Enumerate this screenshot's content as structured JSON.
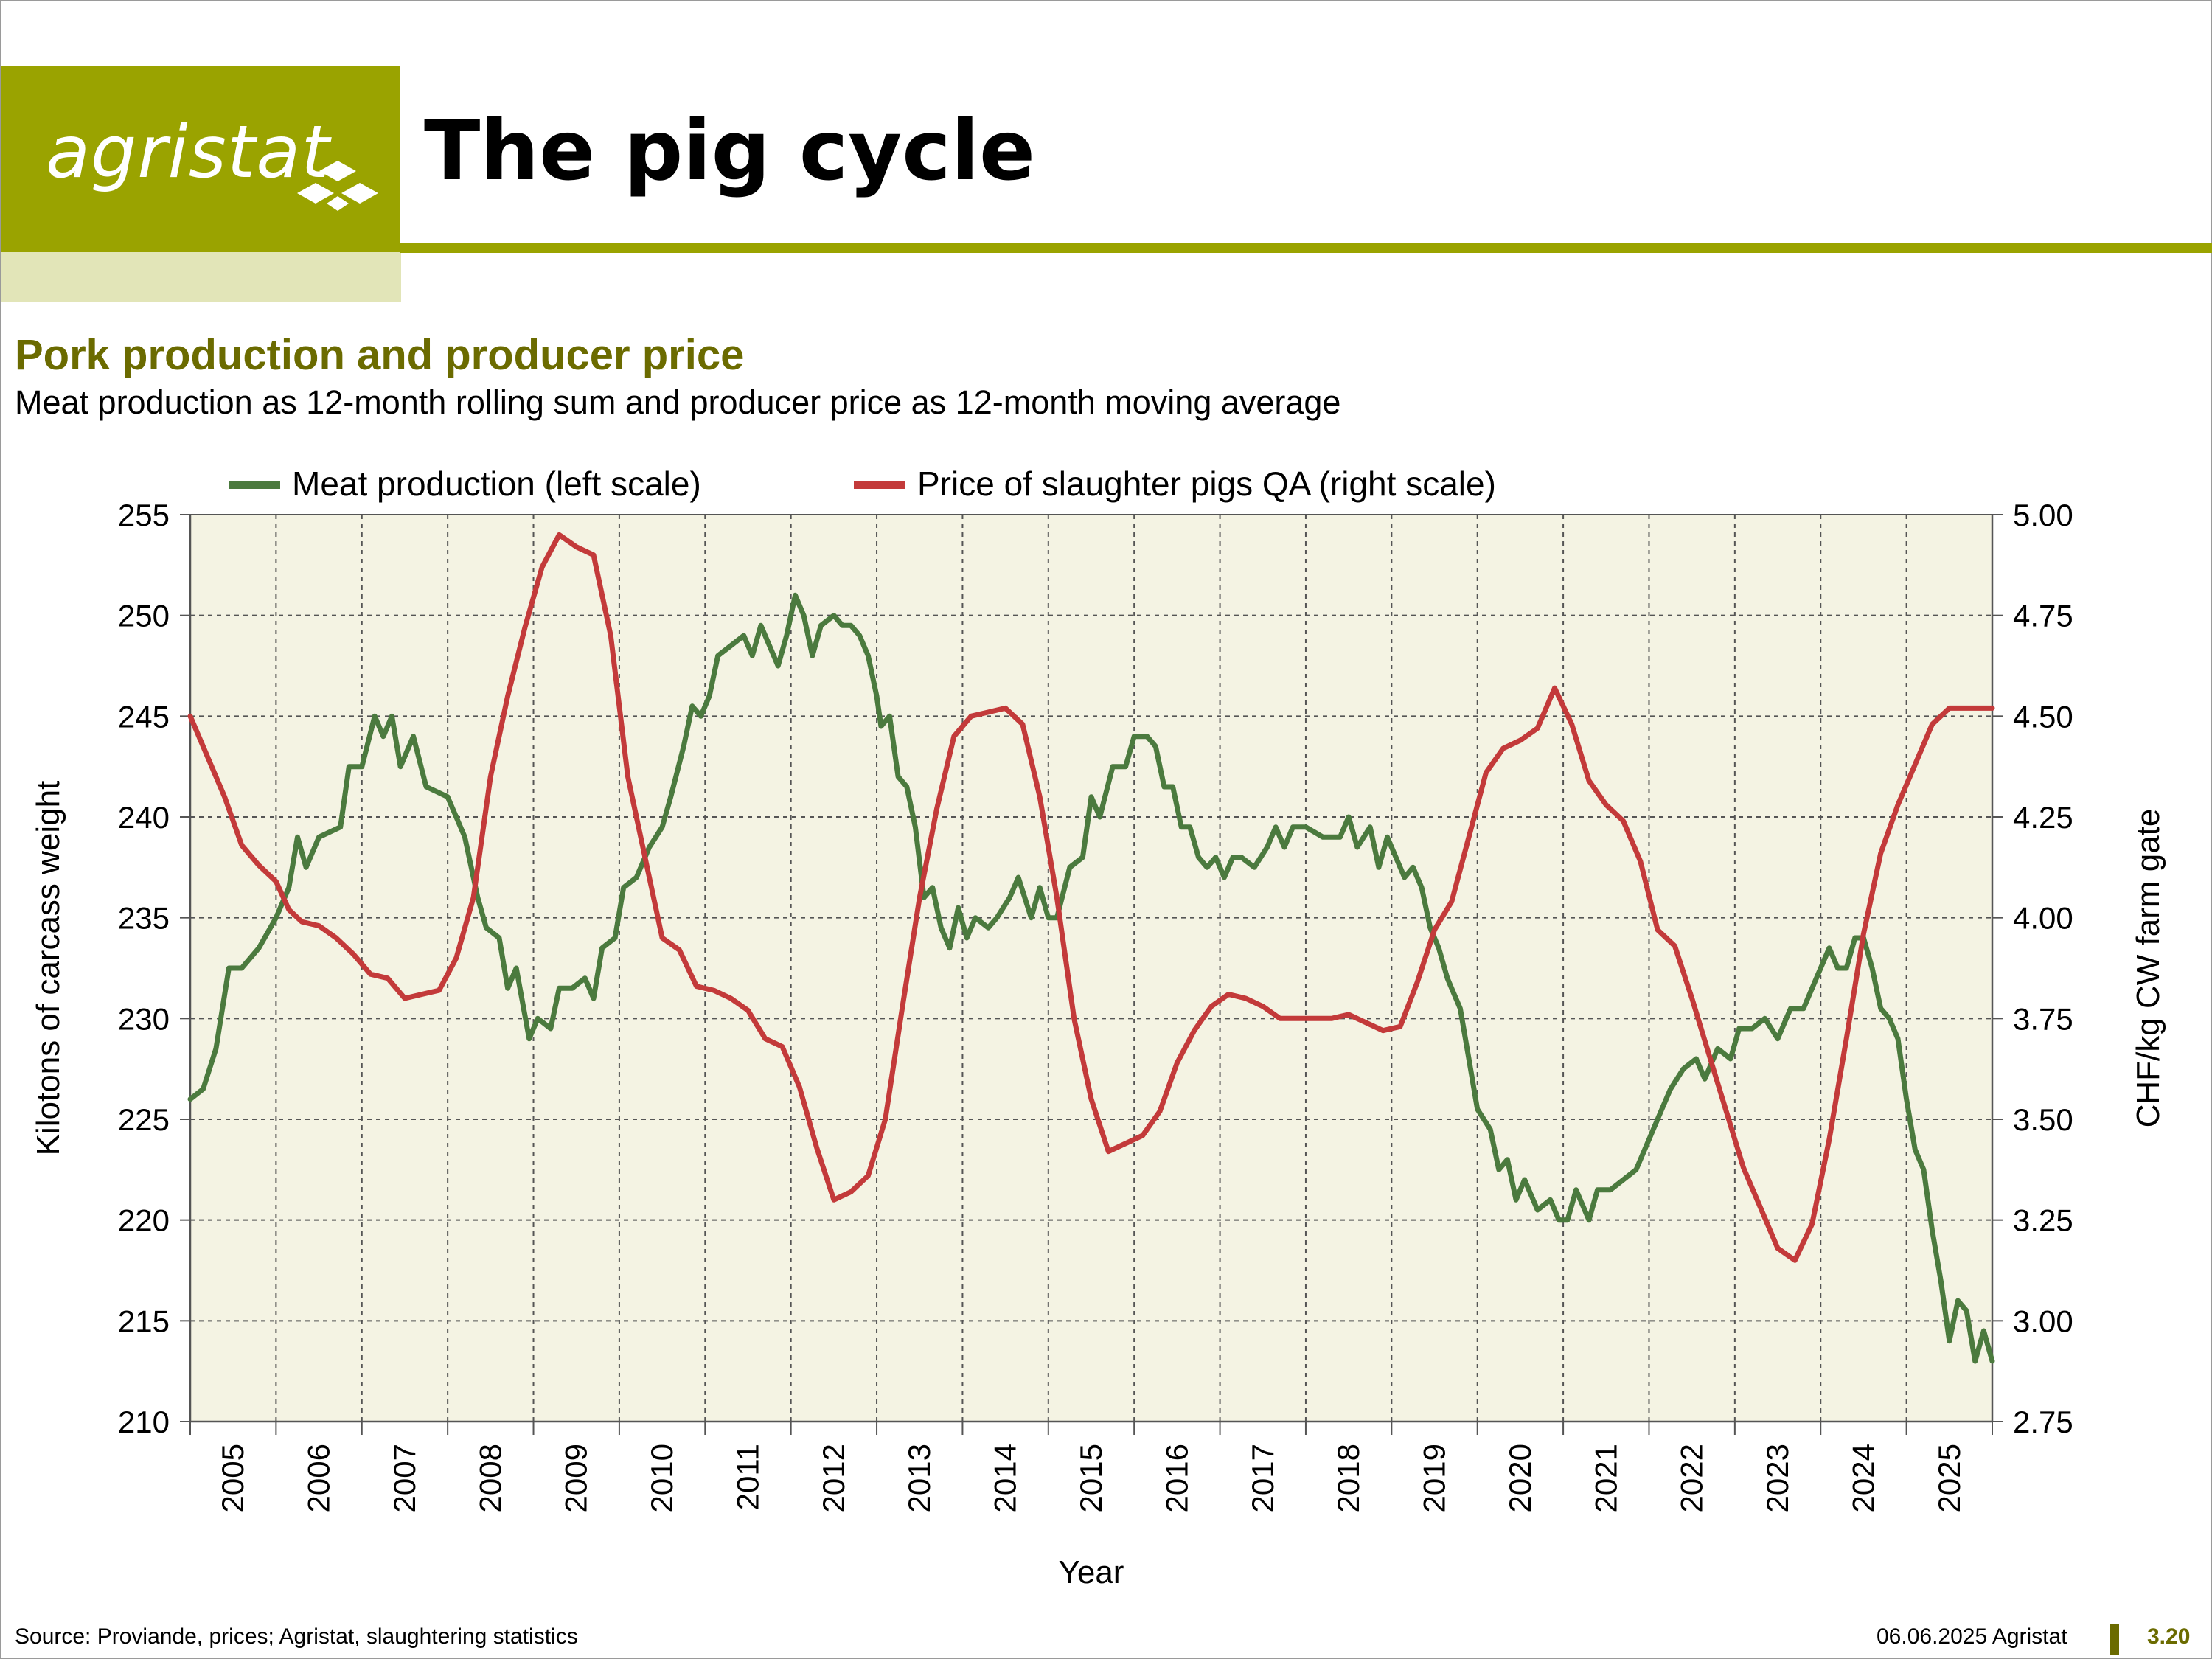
{
  "header": {
    "logo_text": "agristat",
    "page_title": "The pig cycle",
    "brand_color": "#9aa300"
  },
  "footer": {
    "source": "Source: Proviande, prices; Agristat, slaughtering statistics",
    "date": "06.06.2025 Agristat",
    "page_number": "3.20"
  },
  "chart_data": {
    "type": "line",
    "title": "Pork production and producer price",
    "subtitle": "Meat production as 12-month rolling sum and producer price as 12-month moving average",
    "xlabel": "Year",
    "ylabel_left": "Kilotons of carcass weight",
    "ylabel_right": "CHF/kg CW farm gate",
    "ylim_left": [
      210,
      255
    ],
    "ylim_right": [
      2.75,
      5.0
    ],
    "left_ticks": [
      "210",
      "215",
      "220",
      "225",
      "230",
      "235",
      "240",
      "245",
      "250",
      "255"
    ],
    "right_ticks": [
      "2.75",
      "3.00",
      "3.25",
      "3.50",
      "3.75",
      "4.00",
      "4.25",
      "4.50",
      "4.75",
      "5.00"
    ],
    "x_ticks": [
      "2005",
      "2006",
      "2007",
      "2008",
      "2009",
      "2010",
      "2011",
      "2012",
      "2013",
      "2014",
      "2015",
      "2016",
      "2017",
      "2018",
      "2019",
      "2020",
      "2021",
      "2022",
      "2023",
      "2024",
      "2025"
    ],
    "xlim": [
      2005.0,
      2026.0
    ],
    "grid": true,
    "legend_position": "top",
    "series": [
      {
        "name": "Meat production (left scale)",
        "axis": "left",
        "color": "#4b7a3e",
        "points": [
          [
            2005.0,
            226.0
          ],
          [
            2005.15,
            226.5
          ],
          [
            2005.3,
            228.5
          ],
          [
            2005.45,
            232.5
          ],
          [
            2005.6,
            232.5
          ],
          [
            2005.8,
            233.5
          ],
          [
            2006.0,
            235.0
          ],
          [
            2006.15,
            236.5
          ],
          [
            2006.25,
            239.0
          ],
          [
            2006.35,
            237.5
          ],
          [
            2006.5,
            239.0
          ],
          [
            2006.75,
            239.5
          ],
          [
            2006.85,
            242.5
          ],
          [
            2007.0,
            242.5
          ],
          [
            2007.15,
            245.0
          ],
          [
            2007.25,
            244.0
          ],
          [
            2007.35,
            245.0
          ],
          [
            2007.45,
            242.5
          ],
          [
            2007.6,
            244.0
          ],
          [
            2007.75,
            241.5
          ],
          [
            2008.0,
            241.0
          ],
          [
            2008.2,
            239.0
          ],
          [
            2008.35,
            236.0
          ],
          [
            2008.45,
            234.5
          ],
          [
            2008.6,
            234.0
          ],
          [
            2008.7,
            231.5
          ],
          [
            2008.8,
            232.5
          ],
          [
            2008.95,
            229.0
          ],
          [
            2009.05,
            230.0
          ],
          [
            2009.2,
            229.5
          ],
          [
            2009.3,
            231.5
          ],
          [
            2009.45,
            231.5
          ],
          [
            2009.6,
            232.0
          ],
          [
            2009.7,
            231.0
          ],
          [
            2009.8,
            233.5
          ],
          [
            2009.95,
            234.0
          ],
          [
            2010.05,
            236.5
          ],
          [
            2010.2,
            237.0
          ],
          [
            2010.35,
            238.5
          ],
          [
            2010.5,
            239.5
          ],
          [
            2010.6,
            241.0
          ],
          [
            2010.75,
            243.5
          ],
          [
            2010.85,
            245.5
          ],
          [
            2010.95,
            245.0
          ],
          [
            2011.05,
            246.0
          ],
          [
            2011.15,
            248.0
          ],
          [
            2011.3,
            248.5
          ],
          [
            2011.45,
            249.0
          ],
          [
            2011.55,
            248.0
          ],
          [
            2011.65,
            249.5
          ],
          [
            2011.75,
            248.5
          ],
          [
            2011.85,
            247.5
          ],
          [
            2011.95,
            249.0
          ],
          [
            2012.05,
            251.0
          ],
          [
            2012.15,
            250.0
          ],
          [
            2012.25,
            248.0
          ],
          [
            2012.35,
            249.5
          ],
          [
            2012.5,
            250.0
          ],
          [
            2012.6,
            249.5
          ],
          [
            2012.7,
            249.5
          ],
          [
            2012.8,
            249.0
          ],
          [
            2012.9,
            248.0
          ],
          [
            2013.0,
            246.0
          ],
          [
            2013.05,
            244.5
          ],
          [
            2013.15,
            245.0
          ],
          [
            2013.25,
            242.0
          ],
          [
            2013.35,
            241.5
          ],
          [
            2013.45,
            239.5
          ],
          [
            2013.55,
            236.0
          ],
          [
            2013.65,
            236.5
          ],
          [
            2013.75,
            234.5
          ],
          [
            2013.85,
            233.5
          ],
          [
            2013.95,
            235.5
          ],
          [
            2014.05,
            234.0
          ],
          [
            2014.15,
            235.0
          ],
          [
            2014.3,
            234.5
          ],
          [
            2014.4,
            235.0
          ],
          [
            2014.55,
            236.0
          ],
          [
            2014.65,
            237.0
          ],
          [
            2014.8,
            235.0
          ],
          [
            2014.9,
            236.5
          ],
          [
            2015.0,
            235.0
          ],
          [
            2015.1,
            235.0
          ],
          [
            2015.25,
            237.5
          ],
          [
            2015.4,
            238.0
          ],
          [
            2015.5,
            241.0
          ],
          [
            2015.6,
            240.0
          ],
          [
            2015.75,
            242.5
          ],
          [
            2015.9,
            242.5
          ],
          [
            2016.0,
            244.0
          ],
          [
            2016.15,
            244.0
          ],
          [
            2016.25,
            243.5
          ],
          [
            2016.35,
            241.5
          ],
          [
            2016.45,
            241.5
          ],
          [
            2016.55,
            239.5
          ],
          [
            2016.65,
            239.5
          ],
          [
            2016.75,
            238.0
          ],
          [
            2016.85,
            237.5
          ],
          [
            2016.95,
            238.0
          ],
          [
            2017.05,
            237.0
          ],
          [
            2017.15,
            238.0
          ],
          [
            2017.25,
            238.0
          ],
          [
            2017.4,
            237.5
          ],
          [
            2017.55,
            238.5
          ],
          [
            2017.65,
            239.5
          ],
          [
            2017.75,
            238.5
          ],
          [
            2017.85,
            239.5
          ],
          [
            2018.0,
            239.5
          ],
          [
            2018.2,
            239.0
          ],
          [
            2018.4,
            239.0
          ],
          [
            2018.5,
            240.0
          ],
          [
            2018.6,
            238.5
          ],
          [
            2018.75,
            239.5
          ],
          [
            2018.85,
            237.5
          ],
          [
            2018.95,
            239.0
          ],
          [
            2019.05,
            238.0
          ],
          [
            2019.15,
            237.0
          ],
          [
            2019.25,
            237.5
          ],
          [
            2019.35,
            236.5
          ],
          [
            2019.45,
            234.5
          ],
          [
            2019.55,
            233.5
          ],
          [
            2019.65,
            232.0
          ],
          [
            2019.8,
            230.5
          ],
          [
            2019.9,
            228.0
          ],
          [
            2020.0,
            225.5
          ],
          [
            2020.15,
            224.5
          ],
          [
            2020.25,
            222.5
          ],
          [
            2020.35,
            223.0
          ],
          [
            2020.45,
            221.0
          ],
          [
            2020.55,
            222.0
          ],
          [
            2020.7,
            220.5
          ],
          [
            2020.85,
            221.0
          ],
          [
            2020.95,
            220.0
          ],
          [
            2021.05,
            220.0
          ],
          [
            2021.15,
            221.5
          ],
          [
            2021.3,
            220.0
          ],
          [
            2021.4,
            221.5
          ],
          [
            2021.55,
            221.5
          ],
          [
            2021.7,
            222.0
          ],
          [
            2021.85,
            222.5
          ],
          [
            2022.0,
            224.0
          ],
          [
            2022.15,
            225.5
          ],
          [
            2022.25,
            226.5
          ],
          [
            2022.4,
            227.5
          ],
          [
            2022.55,
            228.0
          ],
          [
            2022.65,
            227.0
          ],
          [
            2022.8,
            228.5
          ],
          [
            2022.95,
            228.0
          ],
          [
            2023.05,
            229.5
          ],
          [
            2023.2,
            229.5
          ],
          [
            2023.35,
            230.0
          ],
          [
            2023.5,
            229.0
          ],
          [
            2023.65,
            230.5
          ],
          [
            2023.8,
            230.5
          ],
          [
            2023.95,
            232.0
          ],
          [
            2024.1,
            233.5
          ],
          [
            2024.2,
            232.5
          ],
          [
            2024.3,
            232.5
          ],
          [
            2024.4,
            234.0
          ],
          [
            2024.5,
            234.0
          ],
          [
            2024.6,
            232.5
          ],
          [
            2024.7,
            230.5
          ],
          [
            2024.8,
            230.0
          ],
          [
            2024.9,
            229.0
          ],
          [
            2025.0,
            226.0
          ],
          [
            2025.1,
            223.5
          ],
          [
            2025.2,
            222.5
          ],
          [
            2025.3,
            219.5
          ],
          [
            2025.4,
            217.0
          ],
          [
            2025.5,
            214.0
          ],
          [
            2025.6,
            216.0
          ],
          [
            2025.7,
            215.5
          ],
          [
            2025.8,
            213.0
          ],
          [
            2025.9,
            214.5
          ],
          [
            2026.0,
            213.0
          ]
        ]
      },
      {
        "name": "Price of slaughter pigs QA (right scale)",
        "axis": "right",
        "color": "#c33a3a",
        "points": [
          [
            2005.0,
            4.5
          ],
          [
            2005.2,
            4.4
          ],
          [
            2005.4,
            4.3
          ],
          [
            2005.6,
            4.18
          ],
          [
            2005.8,
            4.13
          ],
          [
            2006.0,
            4.09
          ],
          [
            2006.15,
            4.02
          ],
          [
            2006.3,
            3.99
          ],
          [
            2006.5,
            3.98
          ],
          [
            2006.7,
            3.95
          ],
          [
            2006.9,
            3.91
          ],
          [
            2007.1,
            3.86
          ],
          [
            2007.3,
            3.85
          ],
          [
            2007.5,
            3.8
          ],
          [
            2007.7,
            3.81
          ],
          [
            2007.9,
            3.82
          ],
          [
            2008.1,
            3.9
          ],
          [
            2008.3,
            4.05
          ],
          [
            2008.5,
            4.35
          ],
          [
            2008.7,
            4.55
          ],
          [
            2008.9,
            4.72
          ],
          [
            2009.1,
            4.87
          ],
          [
            2009.3,
            4.95
          ],
          [
            2009.5,
            4.92
          ],
          [
            2009.7,
            4.9
          ],
          [
            2009.9,
            4.7
          ],
          [
            2010.1,
            4.35
          ],
          [
            2010.3,
            4.15
          ],
          [
            2010.5,
            3.95
          ],
          [
            2010.7,
            3.92
          ],
          [
            2010.9,
            3.83
          ],
          [
            2011.1,
            3.82
          ],
          [
            2011.3,
            3.8
          ],
          [
            2011.5,
            3.77
          ],
          [
            2011.7,
            3.7
          ],
          [
            2011.9,
            3.68
          ],
          [
            2012.1,
            3.58
          ],
          [
            2012.3,
            3.43
          ],
          [
            2012.5,
            3.3
          ],
          [
            2012.7,
            3.32
          ],
          [
            2012.9,
            3.36
          ],
          [
            2013.1,
            3.5
          ],
          [
            2013.3,
            3.78
          ],
          [
            2013.5,
            4.05
          ],
          [
            2013.7,
            4.27
          ],
          [
            2013.9,
            4.45
          ],
          [
            2014.1,
            4.5
          ],
          [
            2014.3,
            4.51
          ],
          [
            2014.5,
            4.52
          ],
          [
            2014.7,
            4.48
          ],
          [
            2014.9,
            4.3
          ],
          [
            2015.1,
            4.05
          ],
          [
            2015.3,
            3.75
          ],
          [
            2015.5,
            3.55
          ],
          [
            2015.7,
            3.42
          ],
          [
            2015.9,
            3.44
          ],
          [
            2016.1,
            3.46
          ],
          [
            2016.3,
            3.52
          ],
          [
            2016.5,
            3.64
          ],
          [
            2016.7,
            3.72
          ],
          [
            2016.9,
            3.78
          ],
          [
            2017.1,
            3.81
          ],
          [
            2017.3,
            3.8
          ],
          [
            2017.5,
            3.78
          ],
          [
            2017.7,
            3.75
          ],
          [
            2017.9,
            3.75
          ],
          [
            2018.1,
            3.75
          ],
          [
            2018.3,
            3.75
          ],
          [
            2018.5,
            3.76
          ],
          [
            2018.7,
            3.74
          ],
          [
            2018.9,
            3.72
          ],
          [
            2019.1,
            3.73
          ],
          [
            2019.3,
            3.84
          ],
          [
            2019.5,
            3.97
          ],
          [
            2019.7,
            4.04
          ],
          [
            2019.9,
            4.2
          ],
          [
            2020.1,
            4.36
          ],
          [
            2020.3,
            4.42
          ],
          [
            2020.5,
            4.44
          ],
          [
            2020.7,
            4.47
          ],
          [
            2020.9,
            4.57
          ],
          [
            2021.1,
            4.48
          ],
          [
            2021.3,
            4.34
          ],
          [
            2021.5,
            4.28
          ],
          [
            2021.7,
            4.24
          ],
          [
            2021.9,
            4.14
          ],
          [
            2022.1,
            3.97
          ],
          [
            2022.3,
            3.93
          ],
          [
            2022.5,
            3.8
          ],
          [
            2022.7,
            3.66
          ],
          [
            2022.9,
            3.52
          ],
          [
            2023.1,
            3.38
          ],
          [
            2023.3,
            3.28
          ],
          [
            2023.5,
            3.18
          ],
          [
            2023.7,
            3.15
          ],
          [
            2023.9,
            3.24
          ],
          [
            2024.1,
            3.45
          ],
          [
            2024.3,
            3.7
          ],
          [
            2024.5,
            3.96
          ],
          [
            2024.7,
            4.16
          ],
          [
            2024.9,
            4.28
          ],
          [
            2025.1,
            4.38
          ],
          [
            2025.3,
            4.48
          ],
          [
            2025.5,
            4.52
          ],
          [
            2025.7,
            4.52
          ],
          [
            2025.9,
            4.52
          ],
          [
            2026.0,
            4.52
          ]
        ]
      }
    ]
  }
}
